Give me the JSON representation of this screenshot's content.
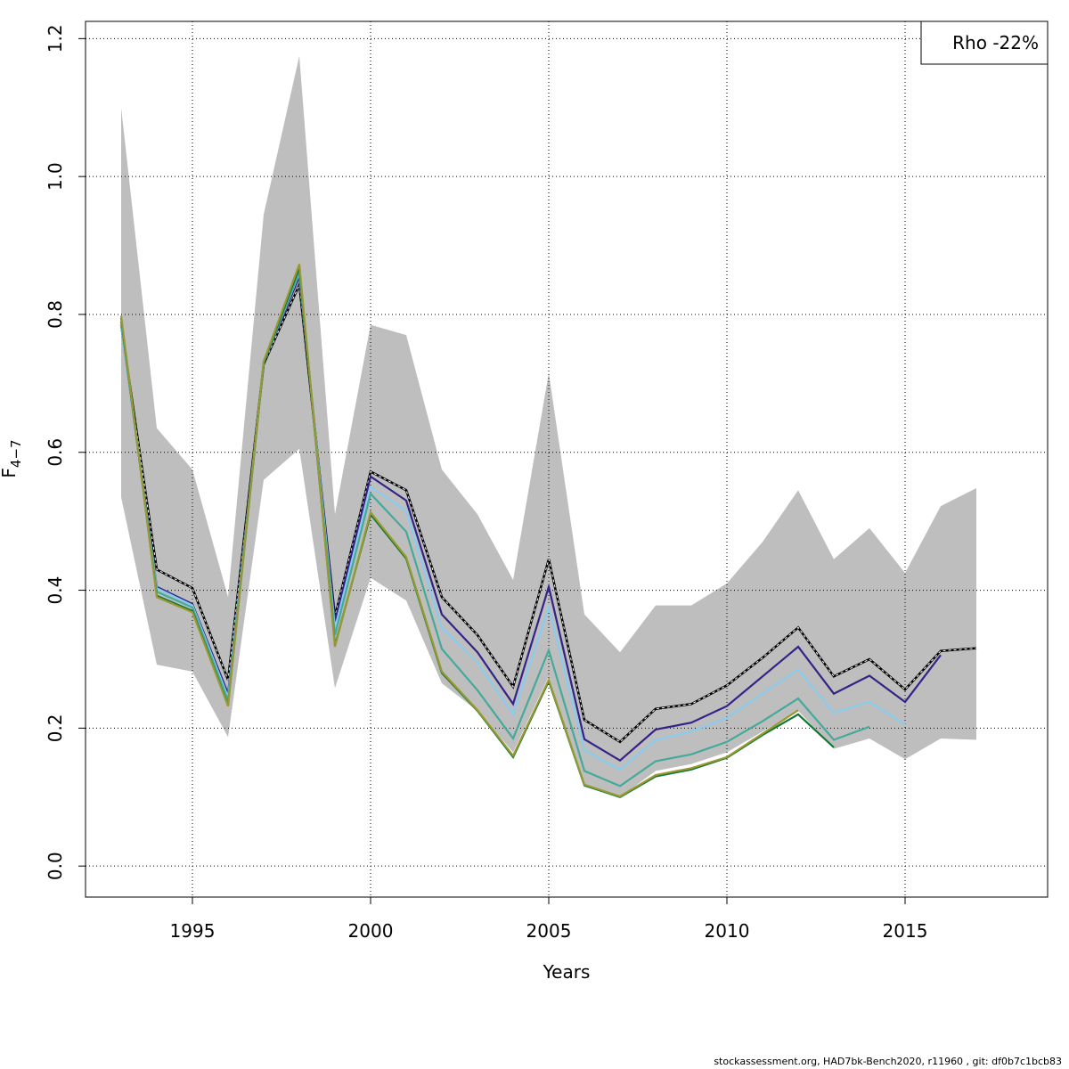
{
  "chart_data": {
    "type": "line",
    "title": "",
    "xlabel": "Years",
    "ylabel": "F",
    "ylabel_sub": "4−7",
    "xlim": [
      1992,
      2019
    ],
    "ylim": [
      -0.045,
      1.225
    ],
    "x_ticks": [
      1995,
      2000,
      2005,
      2010,
      2015
    ],
    "y_ticks": [
      0.0,
      0.2,
      0.4,
      0.6,
      0.8,
      1.0,
      1.2
    ],
    "y_tick_labels": [
      "0.0",
      "0.2",
      "0.4",
      "0.6",
      "0.8",
      "1.0",
      "1.2"
    ],
    "grid": true,
    "legend": {
      "position": "top-right",
      "text": "Rho -22%"
    },
    "confidence_band": {
      "color": "#bebebe",
      "x": [
        1993,
        1994,
        1995,
        1996,
        1997,
        1998,
        1999,
        2000,
        2001,
        2002,
        2003,
        2004,
        2005,
        2006,
        2007,
        2008,
        2009,
        2010,
        2011,
        2012,
        2013,
        2014,
        2015,
        2016,
        2017
      ],
      "upper": [
        1.1,
        0.635,
        0.575,
        0.39,
        0.945,
        1.175,
        0.51,
        0.785,
        0.77,
        0.575,
        0.51,
        0.415,
        0.715,
        0.365,
        0.31,
        0.378,
        0.378,
        0.41,
        0.47,
        0.545,
        0.445,
        0.49,
        0.425,
        0.522,
        0.548
      ],
      "lower": [
        0.535,
        0.292,
        0.282,
        0.187,
        0.56,
        0.605,
        0.258,
        0.418,
        0.385,
        0.265,
        0.225,
        0.165,
        0.275,
        0.115,
        0.1,
        0.138,
        0.148,
        0.165,
        0.195,
        0.225,
        0.17,
        0.185,
        0.155,
        0.185,
        0.183
      ]
    },
    "series": [
      {
        "color": "#000000",
        "dashed": true,
        "x": [
          1993,
          1994,
          1995,
          1996,
          1997,
          1998,
          1999,
          2000,
          2001,
          2002,
          2003,
          2004,
          2005,
          2006,
          2007,
          2008,
          2009,
          2010,
          2011,
          2012,
          2013,
          2014,
          2015,
          2016,
          2017
        ],
        "values": [
          0.785,
          0.43,
          0.403,
          0.27,
          0.728,
          0.843,
          0.362,
          0.572,
          0.545,
          0.39,
          0.335,
          0.26,
          0.445,
          0.212,
          0.18,
          0.228,
          0.235,
          0.262,
          0.302,
          0.346,
          0.275,
          0.3,
          0.256,
          0.312,
          0.316
        ]
      },
      {
        "color": "#332288",
        "x": [
          1993,
          1994,
          1995,
          1996,
          1997,
          1998,
          1999,
          2000,
          2001,
          2002,
          2003,
          2004,
          2005,
          2006,
          2007,
          2008,
          2009,
          2010,
          2011,
          2012,
          2013,
          2014,
          2015,
          2016
        ],
        "values": [
          0.785,
          0.405,
          0.38,
          0.25,
          0.73,
          0.855,
          0.355,
          0.565,
          0.53,
          0.365,
          0.31,
          0.235,
          0.405,
          0.184,
          0.153,
          0.198,
          0.208,
          0.232,
          0.275,
          0.318,
          0.25,
          0.276,
          0.238,
          0.306
        ]
      },
      {
        "color": "#88ccee",
        "x": [
          1993,
          1994,
          1995,
          1996,
          1997,
          1998,
          1999,
          2000,
          2001,
          2002,
          2003,
          2004,
          2005,
          2006,
          2007,
          2008,
          2009,
          2010,
          2011,
          2012,
          2013,
          2014,
          2015
        ],
        "values": [
          0.785,
          0.403,
          0.378,
          0.245,
          0.73,
          0.86,
          0.345,
          0.55,
          0.515,
          0.345,
          0.295,
          0.22,
          0.375,
          0.168,
          0.14,
          0.183,
          0.195,
          0.215,
          0.25,
          0.285,
          0.222,
          0.238,
          0.205
        ]
      },
      {
        "color": "#44aa99",
        "x": [
          1993,
          1994,
          1995,
          1996,
          1997,
          1998,
          1999,
          2000,
          2001,
          2002,
          2003,
          2004,
          2005,
          2006,
          2007,
          2008,
          2009,
          2010,
          2011,
          2012,
          2013,
          2014
        ],
        "values": [
          0.79,
          0.398,
          0.375,
          0.24,
          0.73,
          0.862,
          0.335,
          0.54,
          0.485,
          0.315,
          0.255,
          0.185,
          0.313,
          0.138,
          0.116,
          0.152,
          0.162,
          0.18,
          0.21,
          0.243,
          0.183,
          0.202
        ]
      },
      {
        "color": "#117733",
        "x": [
          1993,
          1994,
          1995,
          1996,
          1997,
          1998,
          1999,
          2000,
          2001,
          2002,
          2003,
          2004,
          2005,
          2006,
          2007,
          2008,
          2009,
          2010,
          2011,
          2012,
          2013
        ],
        "values": [
          0.795,
          0.392,
          0.37,
          0.233,
          0.73,
          0.868,
          0.32,
          0.51,
          0.446,
          0.28,
          0.225,
          0.158,
          0.268,
          0.117,
          0.1,
          0.13,
          0.14,
          0.157,
          0.19,
          0.22,
          0.172
        ]
      },
      {
        "color": "#999933",
        "x": [
          1993,
          1994,
          1995,
          1996,
          1997,
          1998,
          1999,
          2000,
          2001,
          2002,
          2003,
          2004,
          2005,
          2006,
          2007,
          2008,
          2009,
          2010,
          2011,
          2012
        ],
        "values": [
          0.798,
          0.39,
          0.368,
          0.232,
          0.732,
          0.873,
          0.318,
          0.513,
          0.448,
          0.282,
          0.226,
          0.16,
          0.27,
          0.118,
          0.101,
          0.132,
          0.142,
          0.158,
          0.192,
          0.226
        ]
      }
    ]
  },
  "footer": "stockassessment.org, HAD7bk-Bench2020, r11960 , git: df0b7c1bcb83"
}
